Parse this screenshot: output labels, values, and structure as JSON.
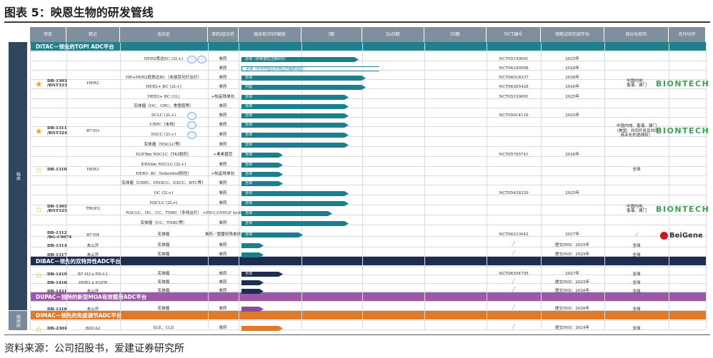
{
  "page_title": "图表 5：映恩生物的研发管线",
  "source": "资料来源：公司招股书，爱建证券研究所",
  "headers": [
    "项目",
    "靶点",
    "适应症",
    "单药/组合药",
    "临床前/IND赋能",
    "I期",
    "Ib/II期",
    "III期",
    "NCT编号",
    "预期试验完成年份",
    "商业化权利",
    "合作伙伴"
  ],
  "sections": [
    {
      "label": "DITAC－领先的TOPI ADC平台",
      "color": "#20808f"
    },
    {
      "label": "DIBAC－领先的双特异性ADC平台",
      "color": "#1d2d4f"
    },
    {
      "label": "DUPAC－独特的新型MOA有效载荷ADC平台",
      "color": "#9b59a8"
    },
    {
      "label": "DIMAC－领先的免疫调节ADC平台",
      "color": "#e07a2b"
    }
  ],
  "side_labels": [
    "临床",
    "临床前"
  ],
  "rows": [
    {
      "indication": "HER2表达EC (2L+)",
      "mode": "单药",
      "bar_label": "全球（单臂潜在注册研究）",
      "bar_pct": 0.48,
      "nct": "NCT05150691",
      "year": "2025年"
    },
    {
      "indication": "",
      "mode": "单药",
      "bar_label": "全球（针对中国以外地区的临床试验）",
      "bar_pct": 0.58,
      "nct": "NCT06340568",
      "year": "2028年"
    },
    {
      "indication": "HR+HER2低表达BC（未接受化疗治疗）",
      "mode": "单药",
      "bar_label": "全球",
      "bar_pct": 0.51,
      "nct": "NCT06018337",
      "year": "2028年"
    },
    {
      "indication": "HER2+ BC (2L+)",
      "mode": "单药",
      "bar_label": "中国",
      "bar_pct": 0.51,
      "nct": "NCT06265428",
      "year": "2026年"
    },
    {
      "indication": "HER2+ BC (1L)",
      "mode": "+帕妥珠单抗",
      "bar_label": "全球",
      "bar_pct": 0.44,
      "nct": "NCT05150691",
      "year": "2025年"
    },
    {
      "indication": "实体瘤（OC、CRC、食管癌等）",
      "mode": "单药",
      "bar_label": "全球",
      "bar_pct": 0.44,
      "nct": "",
      "year": ""
    },
    {
      "indication": "SCLC (2L+)",
      "mode": "单药",
      "bar_label": "全球",
      "bar_pct": 0.44,
      "nct": "NCT05914116",
      "year": "2025年"
    },
    {
      "indication": "CRPC（末线）",
      "mode": "单药",
      "bar_label": "全球",
      "bar_pct": 0.44,
      "nct": "",
      "year": ""
    },
    {
      "indication": "ESCC (2L+)",
      "mode": "单药",
      "bar_label": "全球",
      "bar_pct": 0.44,
      "nct": "",
      "year": ""
    },
    {
      "indication": "实体瘤（NSCLC等）",
      "mode": "单药",
      "bar_label": "全球",
      "bar_pct": 0.44,
      "nct": "",
      "year": ""
    },
    {
      "indication": "EGFRm NSCLC（TKI耐药）",
      "mode": "+奥希替尼",
      "bar_label": "全球",
      "bar_pct": 0.17,
      "nct": "NCT05785741",
      "year": "2026年"
    },
    {
      "indication": "KRASm NSCLC (2L+)",
      "mode": "单药",
      "bar_label": "全球",
      "bar_pct": 0.17,
      "nct": "",
      "year": ""
    },
    {
      "indication": "HER2- BC（Inherited阳性）",
      "mode": "+帕妥珠单抗",
      "bar_label": "全球",
      "bar_pct": 0.17,
      "nct": "",
      "year": ""
    },
    {
      "indication": "实体瘤（CRPC、HNSCC、ESCC、BTC等）",
      "mode": "单药",
      "bar_label": "全球",
      "bar_pct": 0.17,
      "nct": "",
      "year": ""
    },
    {
      "indication": "OC (2L+)",
      "mode": "单药",
      "bar_label": "全球",
      "bar_pct": 0.44,
      "nct": "NCT05438329",
      "year": "2025年"
    },
    {
      "indication": "NSCLC (2L+)",
      "mode": "单药",
      "bar_label": "全球",
      "bar_pct": 0.44,
      "nct": "",
      "year": ""
    },
    {
      "indication": "NSCLC、OC、CC、TNBC（多线治疗）",
      "mode": "+PD-L1/VEGF bsAb",
      "bar_label": "全球",
      "bar_pct": 0.37,
      "nct": "",
      "year": ""
    },
    {
      "indication": "实体瘤（CC、TNBC等）",
      "mode": "单药",
      "bar_label": "全球",
      "bar_pct": 0.44,
      "nct": "",
      "year": ""
    },
    {
      "indication": "实体瘤",
      "mode": "单药／替雷利珠单抗",
      "bar_label": "全球",
      "bar_pct": 0.25,
      "nct": "NCT06233942",
      "year": "2027年"
    },
    {
      "indication": "实体瘤",
      "mode": "单药",
      "bar_label": "",
      "bar_pct": 0.09,
      "nct": "",
      "year": "提交IND：2025年"
    },
    {
      "indication": "实体瘤",
      "mode": "单药",
      "bar_label": "",
      "bar_pct": 0.09,
      "nct": "",
      "year": "提交IND：2025年"
    },
    {
      "indication": "实体瘤",
      "mode": "单药",
      "bar_label": "全球",
      "bar_pct": 0.17,
      "nct": "NCT06554795",
      "year": "2027年"
    },
    {
      "indication": "实体瘤",
      "mode": "单药",
      "bar_label": "",
      "bar_pct": 0.09,
      "nct": "",
      "year": "提交IND：2025年"
    },
    {
      "indication": "实体瘤",
      "mode": "单药",
      "bar_label": "",
      "bar_pct": 0.09,
      "nct": "",
      "year": "提交IND：2026年"
    },
    {
      "indication": "实体瘤",
      "mode": "单药",
      "bar_label": "",
      "bar_pct": 0.09,
      "nct": "",
      "year": "提交IND：2026年"
    },
    {
      "indication": "SLE、CLE",
      "mode": "单药",
      "bar_label": "",
      "bar_pct": 0.17,
      "nct": "",
      "year": "提交IND：2024年"
    }
  ],
  "projects": [
    {
      "name": "DB-1303\n/BNT323",
      "target": "HER2",
      "rights": "中国内地、\n香港、澳门",
      "partner": "BIONTECH",
      "star": "filled"
    },
    {
      "name": "DB-1311\n/BNT324",
      "target": "B7-H3",
      "rights": "中国内地、香港、澳门\n（美国：共同开发及共同\n商业化的选择权）",
      "partner": "BIONTECH",
      "star": "filled"
    },
    {
      "name": "DB-1310",
      "target": "HER3",
      "rights": "全球",
      "partner": "",
      "star": "outline"
    },
    {
      "name": "DB-1305\n/BNT325",
      "target": "TROP2",
      "rights": "中国内地、\n香港、澳门",
      "partner": "BIONTECH",
      "star": "outline"
    },
    {
      "name": "DB-1312\n/BG-C9074",
      "target": "B7-H4",
      "rights": "／",
      "partner": "BeiGene",
      "star": ""
    },
    {
      "name": "DB-1314",
      "target": "未公开",
      "rights": "全球",
      "partner": "",
      "star": ""
    },
    {
      "name": "DB-1317",
      "target": "未公开",
      "rights": "全球",
      "partner": "",
      "star": ""
    },
    {
      "name": "DB-1419",
      "target": "B7-H3 x PD-L1",
      "rights": "全球",
      "partner": "",
      "star": "outline"
    },
    {
      "name": "DB-1418",
      "target": "HER3 x EGFR",
      "rights": "全球",
      "partner": "",
      "star": ""
    },
    {
      "name": "DB-1421",
      "target": "未公开",
      "rights": "全球",
      "partner": "",
      "star": ""
    },
    {
      "name": "DB-1316",
      "target": "未公开",
      "rights": "全球",
      "partner": "",
      "star": ""
    },
    {
      "name": "DB-2304",
      "target": "BDCA2",
      "rights": "全球",
      "partner": "",
      "star": "outline"
    }
  ],
  "nct_slash": "／"
}
